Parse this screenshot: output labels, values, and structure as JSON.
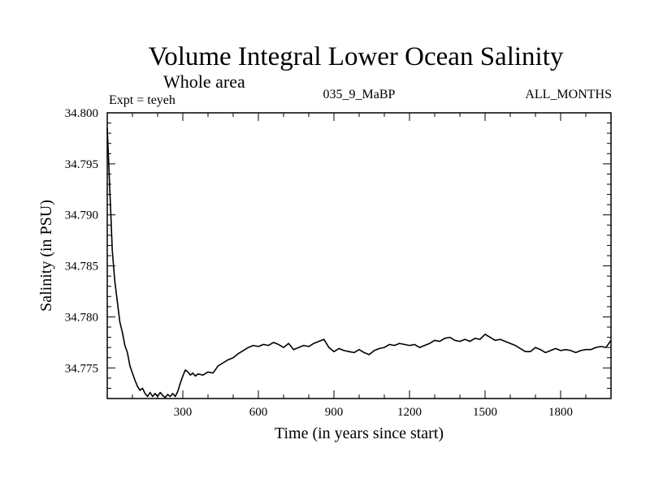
{
  "chart_data": {
    "type": "line",
    "title": "Volume Integral Lower Ocean Salinity",
    "subtitle": "Whole area",
    "experiment_label": "Expt = teyeh",
    "run_label": "035_9_MaBP",
    "period_label": "ALL_MONTHS",
    "xlabel": "Time (in years since start)",
    "ylabel": "Salinity (in PSU)",
    "xlim": [
      0,
      2000
    ],
    "ylim": [
      34.772,
      34.8
    ],
    "xticks": [
      300,
      600,
      900,
      1200,
      1500,
      1800
    ],
    "xtick_labels": [
      "300",
      "600",
      "900",
      "1200",
      "1500",
      "1800"
    ],
    "yticks": [
      34.775,
      34.78,
      34.785,
      34.79,
      34.795,
      34.8
    ],
    "ytick_labels": [
      "34.775",
      "34.780",
      "34.785",
      "34.790",
      "34.795",
      "34.800"
    ],
    "line_color": "#000000",
    "series": [
      {
        "name": "Salinity",
        "x": [
          0,
          5,
          10,
          15,
          20,
          30,
          40,
          50,
          60,
          70,
          80,
          90,
          100,
          110,
          120,
          130,
          140,
          150,
          160,
          170,
          180,
          190,
          200,
          210,
          220,
          230,
          240,
          250,
          260,
          270,
          280,
          290,
          300,
          310,
          320,
          330,
          340,
          350,
          360,
          380,
          400,
          420,
          440,
          460,
          480,
          500,
          520,
          540,
          560,
          580,
          600,
          620,
          640,
          660,
          680,
          700,
          720,
          740,
          760,
          780,
          800,
          820,
          840,
          860,
          880,
          900,
          920,
          940,
          960,
          980,
          1000,
          1020,
          1040,
          1060,
          1080,
          1100,
          1120,
          1140,
          1160,
          1180,
          1200,
          1220,
          1240,
          1260,
          1280,
          1300,
          1320,
          1340,
          1360,
          1380,
          1400,
          1420,
          1440,
          1460,
          1480,
          1500,
          1520,
          1540,
          1560,
          1580,
          1600,
          1620,
          1640,
          1660,
          1680,
          1700,
          1720,
          1740,
          1760,
          1780,
          1800,
          1820,
          1840,
          1860,
          1880,
          1900,
          1920,
          1940,
          1960,
          1980,
          2000
        ],
        "values": [
          34.7985,
          34.7955,
          34.7925,
          34.7895,
          34.7865,
          34.7835,
          34.7815,
          34.7795,
          34.7785,
          34.7772,
          34.7765,
          34.7752,
          34.7745,
          34.7738,
          34.7732,
          34.7728,
          34.773,
          34.7725,
          34.7722,
          34.7726,
          34.7722,
          34.7725,
          34.7722,
          34.7726,
          34.7723,
          34.7721,
          34.7724,
          34.7722,
          34.7725,
          34.7722,
          34.7727,
          34.7735,
          34.7742,
          34.7748,
          34.7746,
          34.7743,
          34.7745,
          34.7742,
          34.7744,
          34.7743,
          34.7746,
          34.7745,
          34.7752,
          34.7755,
          34.7758,
          34.776,
          34.7764,
          34.7767,
          34.777,
          34.7772,
          34.7771,
          34.7773,
          34.7772,
          34.7775,
          34.7773,
          34.777,
          34.7774,
          34.7768,
          34.777,
          34.7772,
          34.7771,
          34.7774,
          34.7776,
          34.7778,
          34.777,
          34.7766,
          34.7769,
          34.7767,
          34.7766,
          34.7765,
          34.7768,
          34.7765,
          34.7763,
          34.7767,
          34.7769,
          34.777,
          34.7773,
          34.7772,
          34.7774,
          34.7773,
          34.7772,
          34.7773,
          34.777,
          34.7772,
          34.7774,
          34.7777,
          34.7776,
          34.7779,
          34.778,
          34.7777,
          34.7776,
          34.7778,
          34.7776,
          34.7779,
          34.7778,
          34.7783,
          34.778,
          34.7777,
          34.7778,
          34.7776,
          34.7774,
          34.7772,
          34.7769,
          34.7766,
          34.7766,
          34.777,
          34.7768,
          34.7765,
          34.7767,
          34.7769,
          34.7767,
          34.7768,
          34.7767,
          34.7765,
          34.7767,
          34.7768,
          34.7768,
          34.777,
          34.7771,
          34.777,
          34.7777
        ]
      }
    ]
  }
}
